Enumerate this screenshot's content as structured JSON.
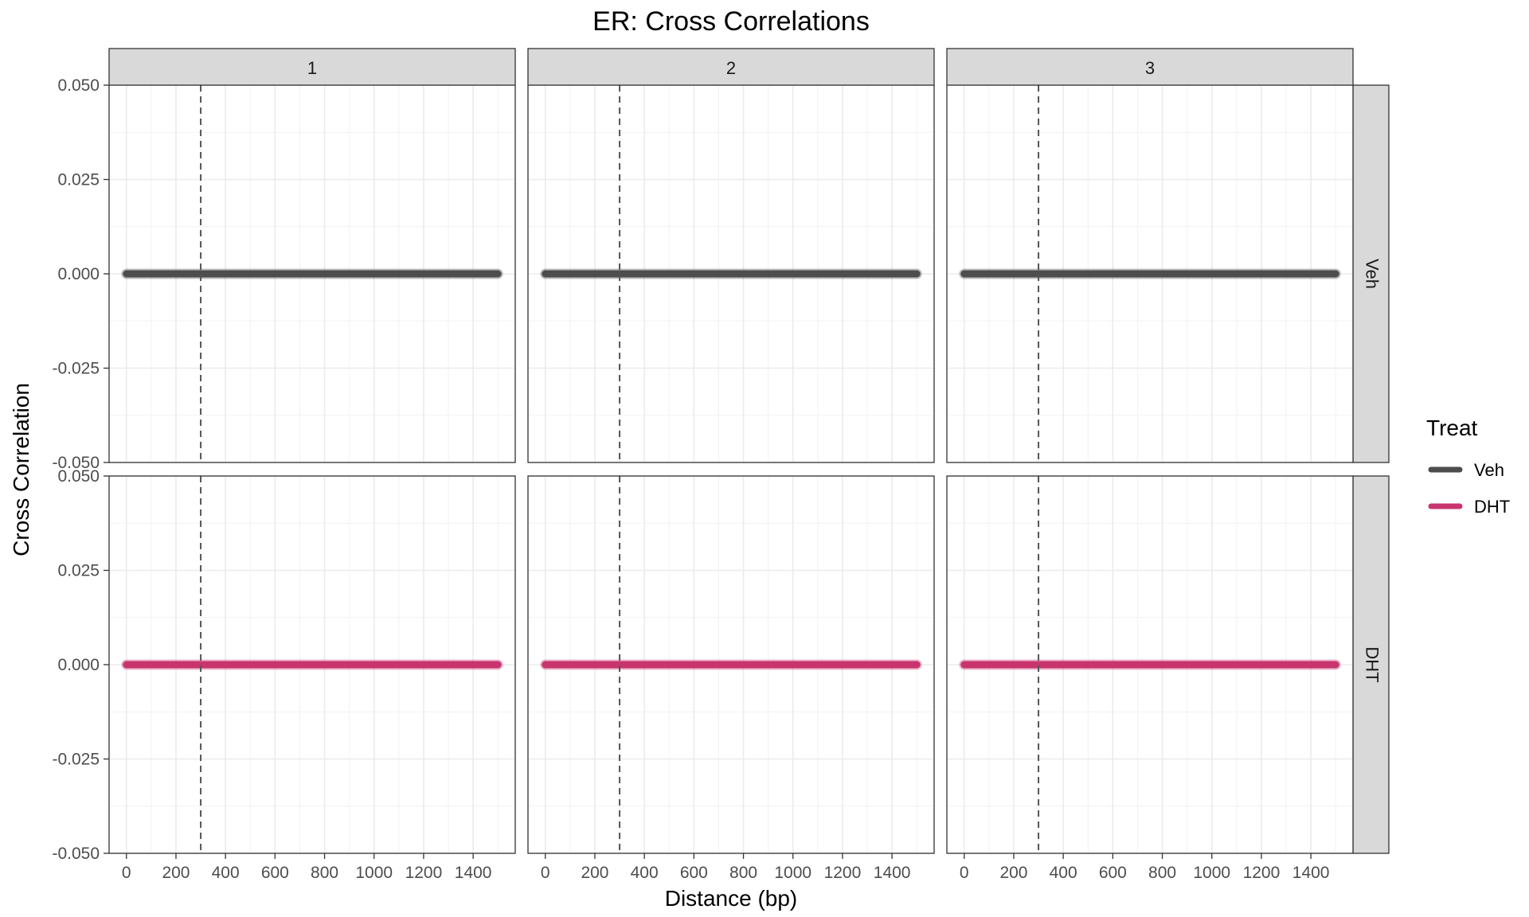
{
  "chart_data": {
    "type": "line",
    "title": "ER: Cross Correlations",
    "xlabel": "Distance (bp)",
    "ylabel": "Cross Correlation",
    "xlim": [
      -70,
      1570
    ],
    "ylim": [
      -0.05,
      0.05
    ],
    "x_ticks": [
      0,
      200,
      400,
      600,
      800,
      1000,
      1200,
      1400
    ],
    "y_ticks": [
      -0.05,
      -0.025,
      0.0,
      0.025,
      0.05
    ],
    "y_tick_labels": [
      "-0.050",
      "-0.025",
      "0.000",
      "0.025",
      "0.050"
    ],
    "facet_columns": [
      "1",
      "2",
      "3"
    ],
    "facet_rows": [
      "Veh",
      "DHT"
    ],
    "reference_line_x": 300,
    "grid": true,
    "legend": {
      "title": "Treat",
      "position": "right",
      "entries": [
        {
          "label": "Veh",
          "color": "#4d4d4d"
        },
        {
          "label": "DHT",
          "color": "#c8346e"
        }
      ]
    },
    "series": [
      {
        "facet_row": "Veh",
        "facet_col": "1",
        "x_range": [
          0,
          1500
        ],
        "y": 0.0,
        "color": "#4d4d4d"
      },
      {
        "facet_row": "Veh",
        "facet_col": "2",
        "x_range": [
          0,
          1500
        ],
        "y": 0.0,
        "color": "#4d4d4d"
      },
      {
        "facet_row": "Veh",
        "facet_col": "3",
        "x_range": [
          0,
          1500
        ],
        "y": 0.0,
        "color": "#4d4d4d"
      },
      {
        "facet_row": "DHT",
        "facet_col": "1",
        "x_range": [
          0,
          1500
        ],
        "y": 0.0,
        "color": "#c8346e"
      },
      {
        "facet_row": "DHT",
        "facet_col": "2",
        "x_range": [
          0,
          1500
        ],
        "y": 0.0,
        "color": "#c8346e"
      },
      {
        "facet_row": "DHT",
        "facet_col": "3",
        "x_range": [
          0,
          1500
        ],
        "y": 0.0,
        "color": "#c8346e"
      }
    ]
  }
}
